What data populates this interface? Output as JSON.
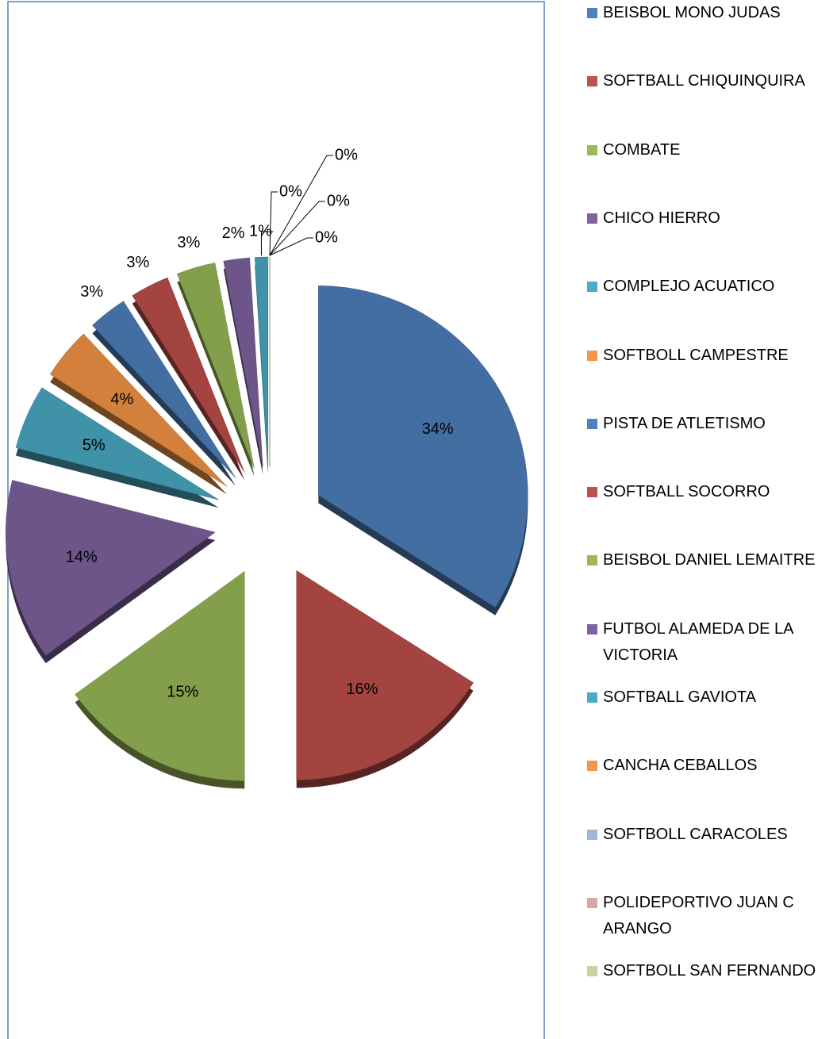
{
  "chart_data": {
    "type": "pie",
    "categories": [
      "BEISBOL MONO JUDAS",
      "SOFTBALL CHIQUINQUIRA",
      "COMBATE",
      "CHICO HIERRO",
      "COMPLEJO ACUATICO",
      "SOFTBOLL CAMPESTRE",
      "PISTA DE ATLETISMO",
      "SOFTBALL SOCORRO",
      "BEISBOL DANIEL LEMAITRE",
      "FUTBOL ALAMEDA DE LA VICTORIA",
      "SOFTBALL GAVIOTA",
      "CANCHA CEBALLOS",
      "SOFTBOLL CARACOLES",
      "POLIDEPORTIVO JUAN C ARANGO",
      "SOFTBOLL SAN FERNANDO"
    ],
    "values": [
      34,
      16,
      15,
      14,
      5,
      4,
      3,
      3,
      3,
      2,
      1,
      0,
      0,
      0,
      0
    ],
    "value_labels": [
      "34%",
      "16%",
      "15%",
      "14%",
      "5%",
      "4%",
      "3%",
      "3%",
      "3%",
      "2%",
      "1%",
      "0%",
      "0%",
      "0%",
      "0%"
    ],
    "colors": [
      "#4f81bd",
      "#c0504d",
      "#9bbb59",
      "#8064a2",
      "#4bacc6",
      "#f79646",
      "#4f81bd",
      "#c0504d",
      "#9bbb59",
      "#8064a2",
      "#4bacc6",
      "#f79646",
      "#a5b5d9",
      "#d9a5a5",
      "#c3d69b"
    ],
    "legend": "right"
  }
}
